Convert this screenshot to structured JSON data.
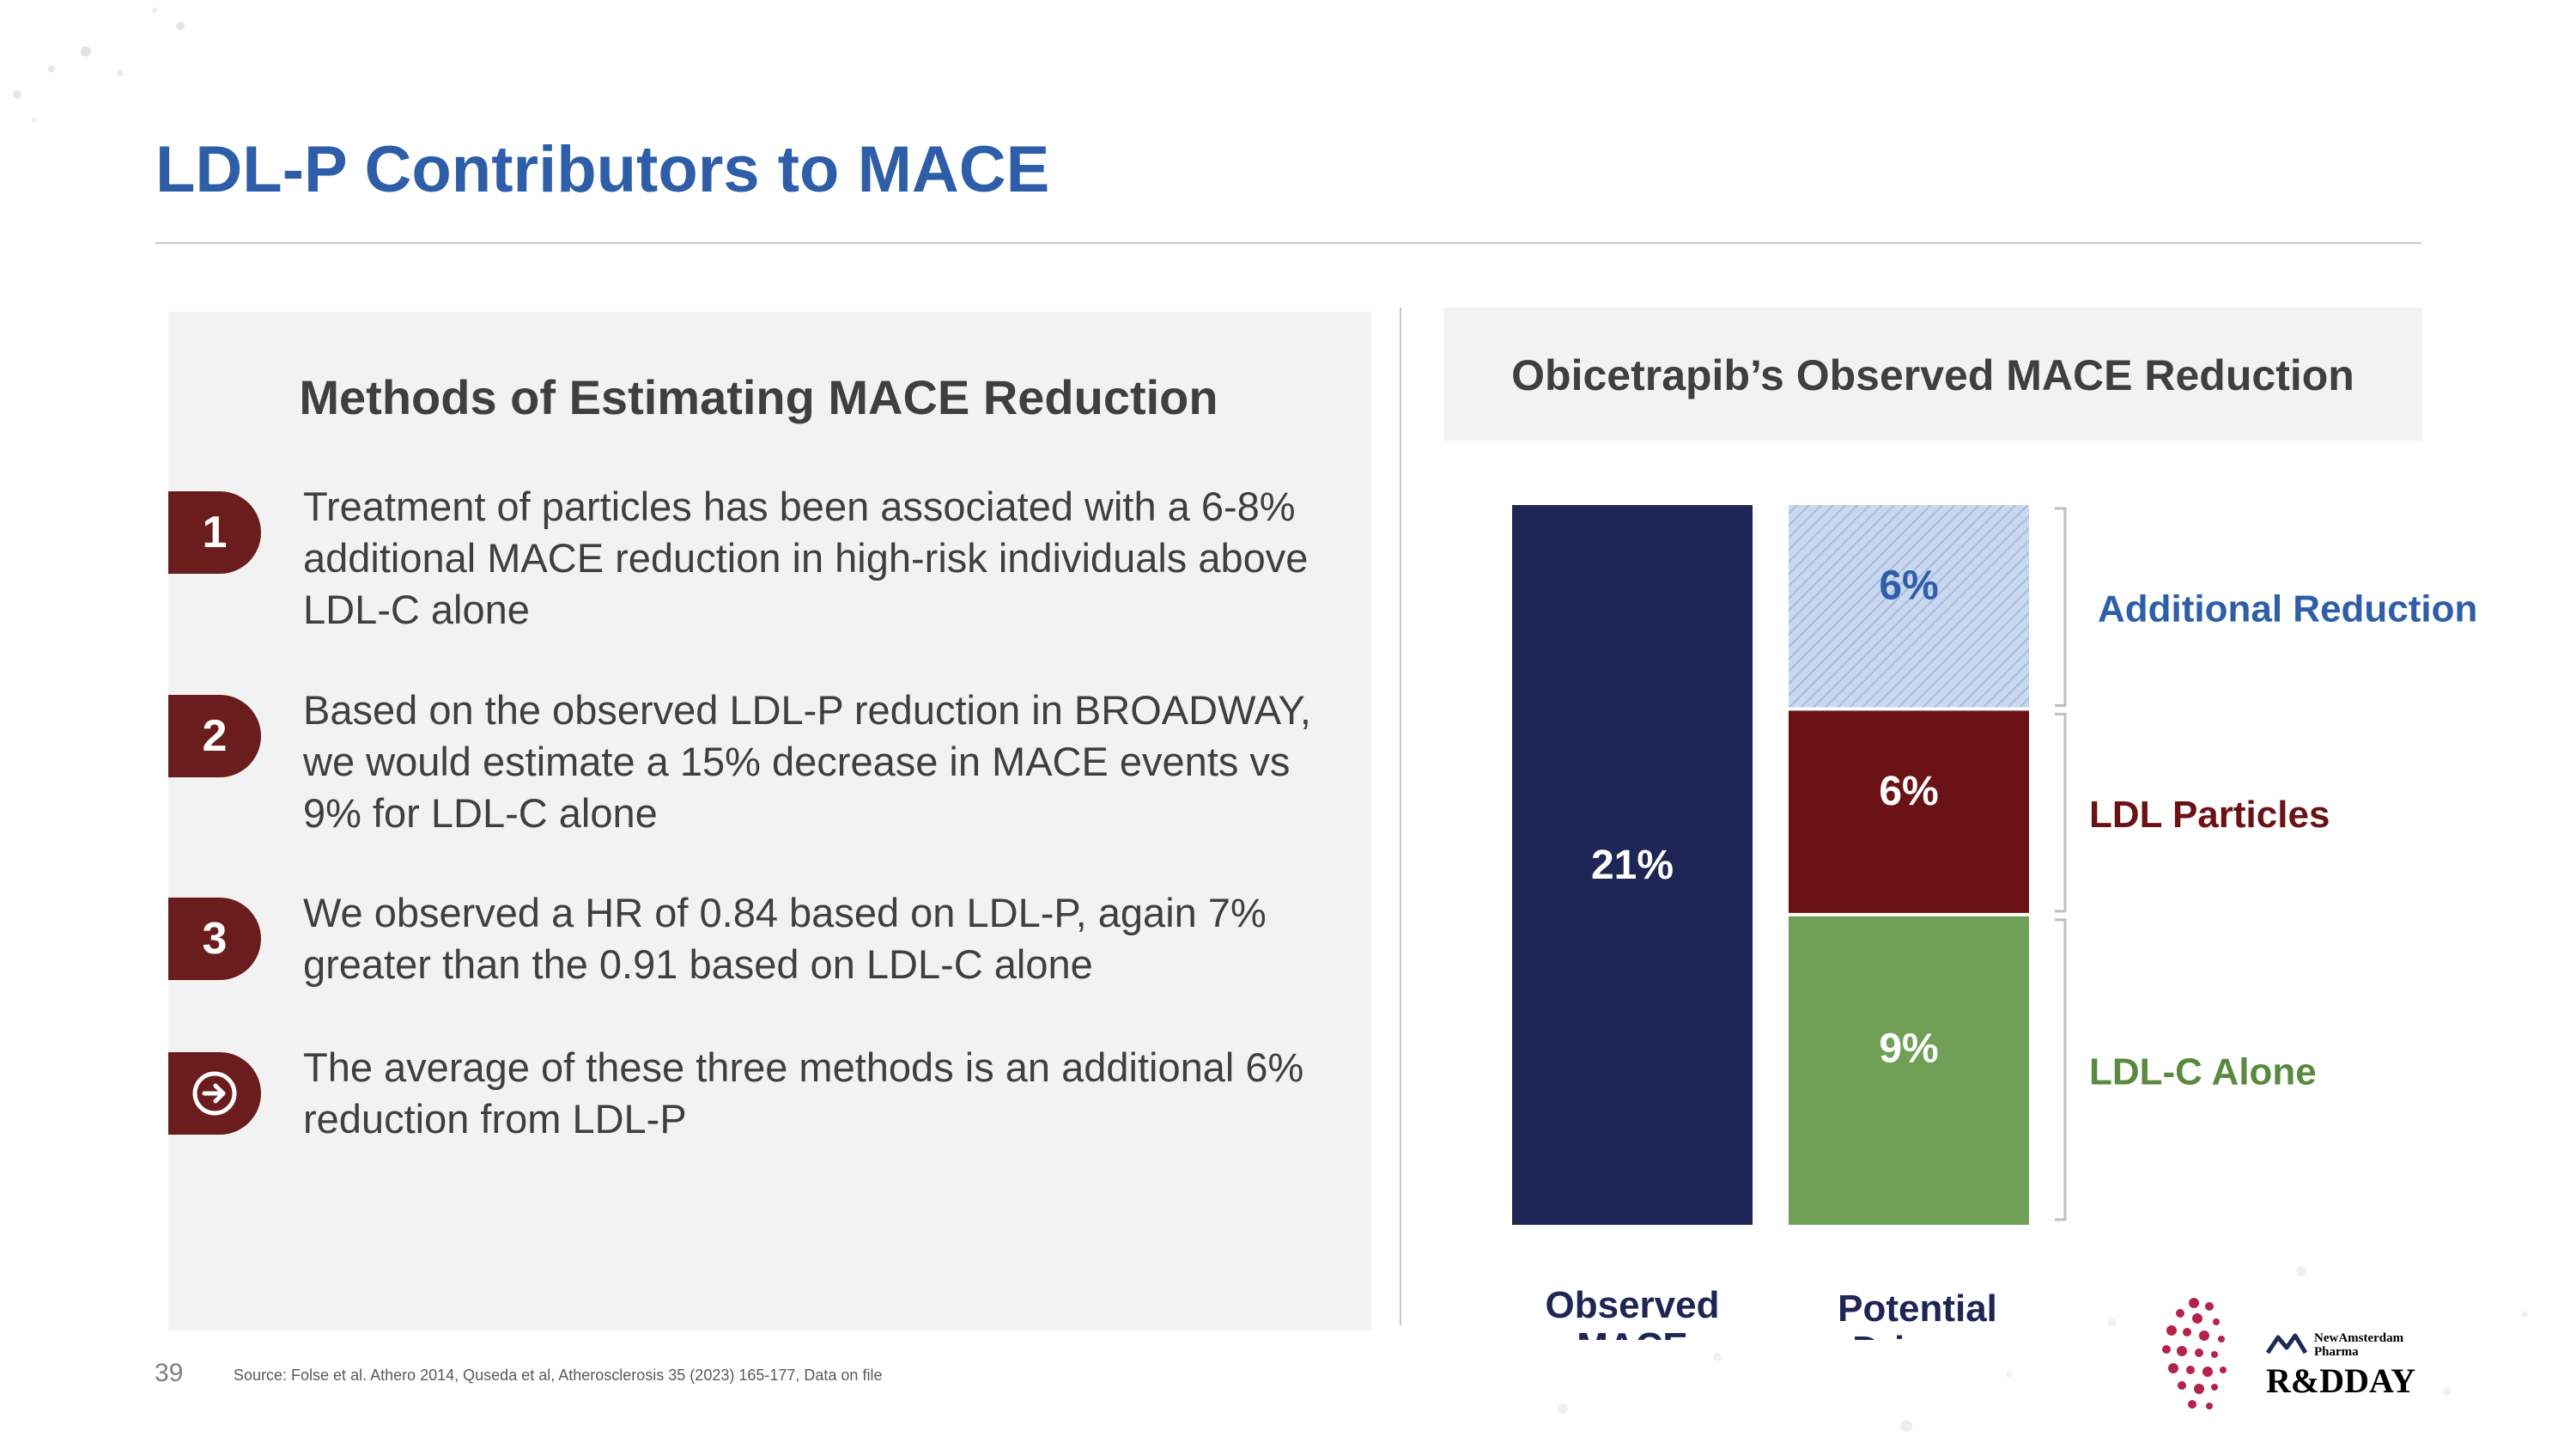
{
  "page": {
    "title": "LDL-P Contributors to MACE",
    "page_number": "39",
    "source": "Source: Folse et al. Athero 2014, Quseda et al, Atherosclerosis 35 (2023) 165-177, Data on file"
  },
  "left_panel": {
    "heading": "Methods of Estimating MACE Reduction",
    "items": [
      {
        "badge": "1",
        "text": "Treatment of particles has been associated with a 6-8% additional MACE reduction in high-risk individuals above LDL-C alone"
      },
      {
        "badge": "2",
        "text": "Based on the observed LDL-P reduction in BROADWAY, we would estimate a 15% decrease in MACE events vs 9% for LDL-C alone"
      },
      {
        "badge": "3",
        "text": "We observed a HR of 0.84 based on LDL-P, again 7% greater than the 0.91 based on LDL-C alone"
      },
      {
        "badge_icon": "arrow-circle-icon",
        "text": "The average of these three methods is an additional 6% reduction from LDL-P"
      }
    ]
  },
  "right_panel": {
    "heading": "Obicetrapib’s Observed MACE Reduction"
  },
  "logo": {
    "brand_line1": "NewAmsterdam",
    "brand_line2": "Pharma",
    "event": "R&DDAY"
  },
  "colors": {
    "title": "#2f5ea8",
    "badge": "#6b1d1d",
    "observed": "#1f2554",
    "ldl_c": "#70a055",
    "ldl_particles": "#6b1216",
    "additional": "#b4c8e6"
  },
  "chart_data": {
    "type": "bar",
    "stacked": true,
    "title": "Obicetrapib’s Observed MACE Reduction",
    "categories": [
      "Observed MACE",
      "Potential Drivers"
    ],
    "category_labels": [
      [
        "Observed",
        "MACE"
      ],
      [
        "Potential",
        "Drivers"
      ]
    ],
    "series": [
      {
        "name": "Observed MACE",
        "values": [
          21,
          0
        ],
        "color": "#1f2554",
        "label_color": "#1f2554",
        "pattern": "solid"
      },
      {
        "name": "LDL-C Alone",
        "values": [
          0,
          9
        ],
        "color": "#70a055",
        "label_color": "#5a8a40",
        "pattern": "solid"
      },
      {
        "name": "LDL Particles",
        "values": [
          0,
          6
        ],
        "color": "#6b1216",
        "label_color": "#6b1216",
        "pattern": "solid"
      },
      {
        "name": "Additional Reduction",
        "values": [
          0,
          6
        ],
        "color": "#b4c8e6",
        "label_color": "#2f5ea8",
        "pattern": "hatched"
      }
    ],
    "data_labels": [
      "21%",
      "9%",
      "6%",
      "6%"
    ],
    "bracket_labels": [
      "LDL-C Alone",
      "LDL Particles",
      "Additional Reduction"
    ],
    "ylim": [
      0,
      21
    ],
    "grid": false,
    "legend": "right (bracketed labels)"
  }
}
